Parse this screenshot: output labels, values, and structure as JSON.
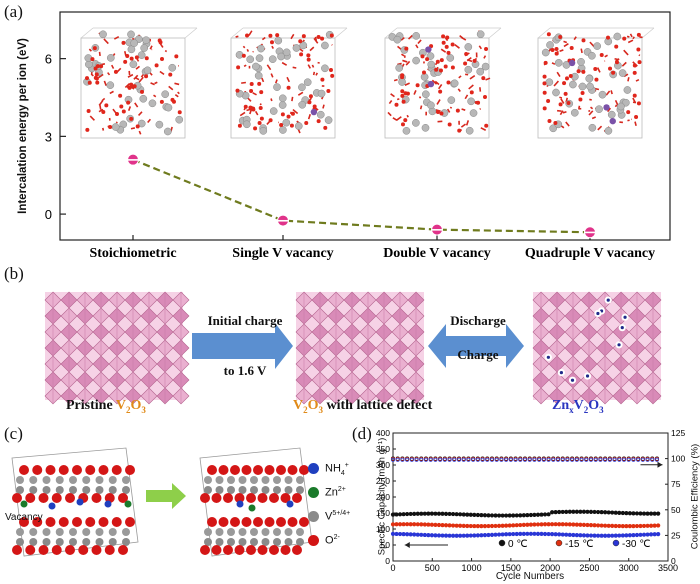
{
  "panel_a": {
    "label": "(a)",
    "chart_data": {
      "type": "line",
      "categories": [
        "Stoichiometric",
        "Single V vacancy",
        "Double V vacancy",
        "Quadruple V vacancy"
      ],
      "series": [
        {
          "values": [
            2.1,
            -0.25,
            -0.6,
            -0.7
          ]
        }
      ],
      "ylabel": "Intercalation energy per ion (eV)",
      "yticks": [
        "0",
        "3",
        "6"
      ],
      "ylim": [
        -1.0,
        7.8
      ],
      "point_color": "#e0338a",
      "line_color": "#6f7b1e"
    }
  },
  "panel_b": {
    "label": "(b)",
    "left_caption_pre": "Pristine ",
    "left_caption_formula": "V",
    "left_caption_sub": "2",
    "left_caption_formula2": "O",
    "left_caption_sub2": "3",
    "arrow1_line1": "Initial charge",
    "arrow1_line2": "to 1.6 V",
    "middle_caption_v": "V",
    "middle_caption_sub": "2",
    "middle_caption_o": "O",
    "middle_caption_sub2": "3",
    "middle_caption_rest": " with lattice defect",
    "discharge": "Discharge",
    "charge": "Charge",
    "right_caption_zn": "Zn",
    "right_caption_x": "x",
    "right_caption_v": "V",
    "right_caption_sub": "2",
    "right_caption_o": "O",
    "right_caption_sub2": "3"
  },
  "panel_c": {
    "label": "(c)",
    "vacancy": "Vacancy",
    "legend": [
      {
        "name": "NH",
        "sub": "4",
        "sup": "+",
        "color": "#1f3fbf"
      },
      {
        "name": "Zn",
        "sub": "",
        "sup": "2+",
        "color": "#1a7a2a"
      },
      {
        "name": "V",
        "sub": "",
        "sup": "5+/4+",
        "color": "#8a8a8a"
      },
      {
        "name": "O",
        "sub": "",
        "sup": "2-",
        "color": "#d21414"
      }
    ]
  },
  "panel_d": {
    "label": "(d)",
    "chart_data": {
      "type": "scatter",
      "xlabel": "Cycle Numbers",
      "ylabel_left": "Specific Capacity (mAh g⁻¹)",
      "ylabel_right": "Coulombic Efficiency (%)",
      "xlim": [
        0,
        3500
      ],
      "ylim_left": [
        0,
        400
      ],
      "ylim_right": [
        0,
        125
      ],
      "xticks": [
        "0",
        "500",
        "1000",
        "1500",
        "2000",
        "2500",
        "3000",
        "3500"
      ],
      "yticks_left": [
        "0",
        "50",
        "100",
        "150",
        "200",
        "250",
        "300",
        "350",
        "400"
      ],
      "yticks_right": [
        "0",
        "25",
        "50",
        "75",
        "100",
        "125"
      ],
      "series": [
        {
          "name": "0 ℃",
          "color": "#111111",
          "capacity": 145,
          "efficiency": 100
        },
        {
          "name": "-15 ℃",
          "color": "#e03010",
          "capacity": 112,
          "efficiency": 100
        },
        {
          "name": "-30 ℃",
          "color": "#2a36d6",
          "capacity": 82,
          "efficiency": 100
        }
      ]
    }
  }
}
